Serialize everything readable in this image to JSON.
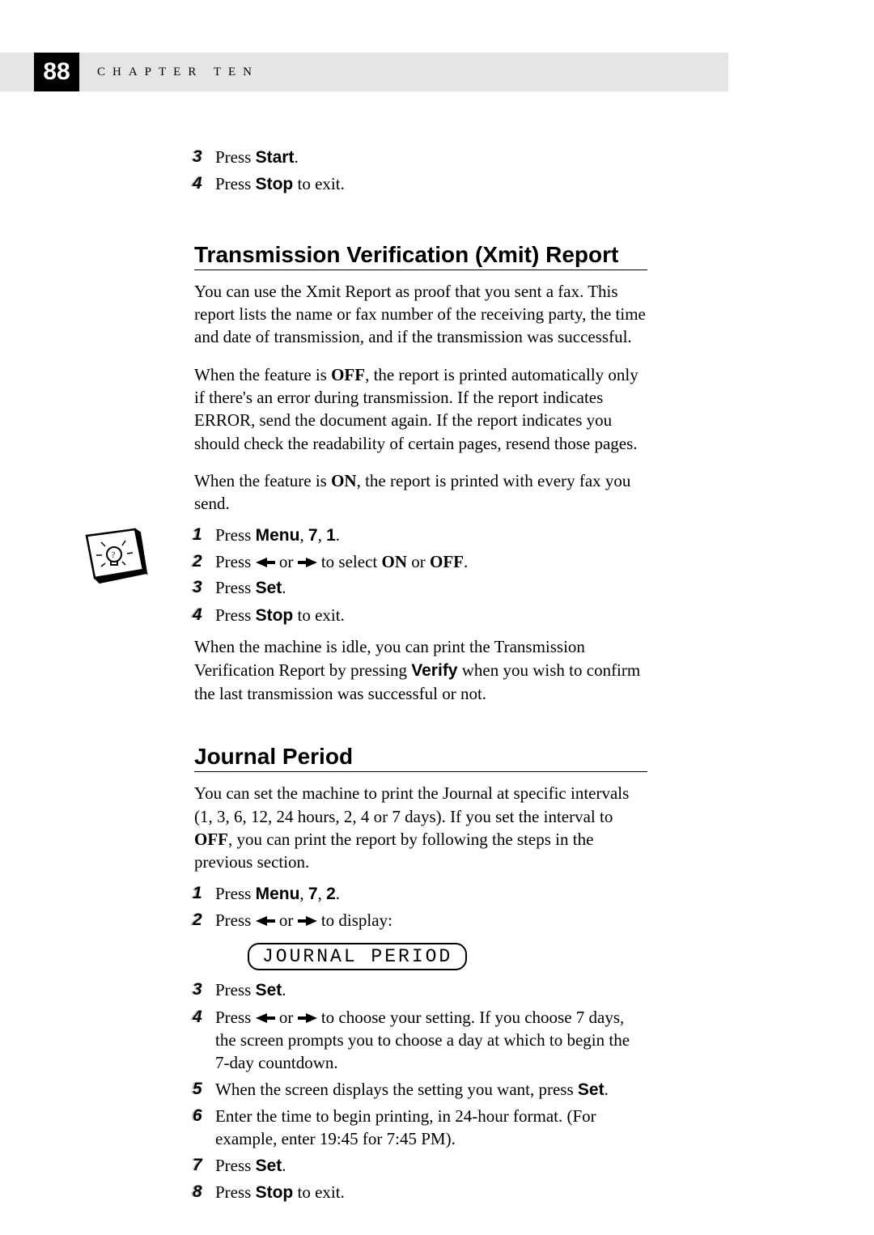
{
  "header": {
    "page_number": "88",
    "chapter_label": "CHAPTER TEN"
  },
  "intro_steps": [
    {
      "num": "3",
      "parts": [
        {
          "t": "plain",
          "v": "Press "
        },
        {
          "t": "sans",
          "v": "Start"
        },
        {
          "t": "plain",
          "v": "."
        }
      ]
    },
    {
      "num": "4",
      "parts": [
        {
          "t": "plain",
          "v": "Press "
        },
        {
          "t": "sans",
          "v": "Stop"
        },
        {
          "t": "plain",
          "v": " to exit."
        }
      ]
    }
  ],
  "section1": {
    "heading": "Transmission Verification (Xmit) Report",
    "para1": "You can use the Xmit Report as proof that you sent a fax. This report lists the name or fax number of the receiving party, the time and date of transmission, and if the transmission was successful.",
    "para2_pre": "When the feature is ",
    "para2_bold1": "OFF",
    "para2_post": ", the report is printed automatically only if there's an error during transmission. If the report indicates ERROR, send the document again. If the report indicates you should check the readability of certain pages, resend those pages.",
    "para3_pre": "When the feature is ",
    "para3_bold": "ON",
    "para3_post": ", the report is printed with every fax you send.",
    "steps": [
      {
        "num": "1",
        "parts": [
          {
            "t": "plain",
            "v": "Press "
          },
          {
            "t": "sans",
            "v": "Menu"
          },
          {
            "t": "plain",
            "v": ", "
          },
          {
            "t": "sans",
            "v": "7"
          },
          {
            "t": "plain",
            "v": ", "
          },
          {
            "t": "sans",
            "v": "1"
          },
          {
            "t": "plain",
            "v": "."
          }
        ]
      },
      {
        "num": "2",
        "parts": [
          {
            "t": "plain",
            "v": "Press "
          },
          {
            "t": "arrL",
            "v": ""
          },
          {
            "t": "plain",
            "v": " or "
          },
          {
            "t": "arrR",
            "v": ""
          },
          {
            "t": "plain",
            "v": " to select "
          },
          {
            "t": "serif-b",
            "v": "ON"
          },
          {
            "t": "plain",
            "v": " or "
          },
          {
            "t": "serif-b",
            "v": "OFF"
          },
          {
            "t": "plain",
            "v": "."
          }
        ]
      },
      {
        "num": "3",
        "parts": [
          {
            "t": "plain",
            "v": "Press "
          },
          {
            "t": "sans",
            "v": "Set"
          },
          {
            "t": "plain",
            "v": "."
          }
        ]
      },
      {
        "num": "4",
        "parts": [
          {
            "t": "plain",
            "v": "Press "
          },
          {
            "t": "sans",
            "v": "Stop"
          },
          {
            "t": "plain",
            "v": " to exit."
          }
        ]
      }
    ],
    "tip_pre": "When the machine is idle, you can print the Transmission Verification Report by pressing ",
    "tip_bold": "Verify",
    "tip_post": " when you wish to confirm the last transmission was successful or not."
  },
  "section2": {
    "heading": "Journal Period",
    "para_pre": "You can set the machine to print the Journal at specific intervals (1, 3, 6, 12, 24 hours, 2, 4 or 7 days). If you set the interval to ",
    "para_bold": "OFF",
    "para_post": ", you can print the report by following the steps in the previous section.",
    "steps_a": [
      {
        "num": "1",
        "parts": [
          {
            "t": "plain",
            "v": "Press "
          },
          {
            "t": "sans",
            "v": "Menu"
          },
          {
            "t": "plain",
            "v": ", "
          },
          {
            "t": "sans",
            "v": "7"
          },
          {
            "t": "plain",
            "v": ", "
          },
          {
            "t": "sans",
            "v": "2"
          },
          {
            "t": "plain",
            "v": "."
          }
        ]
      },
      {
        "num": "2",
        "parts": [
          {
            "t": "plain",
            "v": "Press "
          },
          {
            "t": "arrL",
            "v": ""
          },
          {
            "t": "plain",
            "v": " or "
          },
          {
            "t": "arrR",
            "v": ""
          },
          {
            "t": "plain",
            "v": " to display:"
          }
        ]
      }
    ],
    "lcd": "JOURNAL PERIOD",
    "steps_b": [
      {
        "num": "3",
        "parts": [
          {
            "t": "plain",
            "v": "Press "
          },
          {
            "t": "sans",
            "v": "Set"
          },
          {
            "t": "plain",
            "v": "."
          }
        ]
      },
      {
        "num": "4",
        "parts": [
          {
            "t": "plain",
            "v": "Press "
          },
          {
            "t": "arrL",
            "v": ""
          },
          {
            "t": "plain",
            "v": " or "
          },
          {
            "t": "arrR",
            "v": ""
          },
          {
            "t": "plain",
            "v": " to choose your setting. If you choose 7 days, the screen prompts you to choose a day at which to begin the 7-day countdown."
          }
        ]
      },
      {
        "num": "5",
        "parts": [
          {
            "t": "plain",
            "v": "When the screen displays the setting you want, press "
          },
          {
            "t": "sans",
            "v": "Set"
          },
          {
            "t": "plain",
            "v": "."
          }
        ]
      },
      {
        "num": "6",
        "parts": [
          {
            "t": "plain",
            "v": "Enter the time to begin printing, in 24-hour format. (For example, enter 19:45 for 7:45 PM)."
          }
        ]
      },
      {
        "num": "7",
        "parts": [
          {
            "t": "plain",
            "v": "Press "
          },
          {
            "t": "sans",
            "v": "Set"
          },
          {
            "t": "plain",
            "v": "."
          }
        ]
      },
      {
        "num": "8",
        "parts": [
          {
            "t": "plain",
            "v": "Press "
          },
          {
            "t": "sans",
            "v": "Stop"
          },
          {
            "t": "plain",
            "v": " to exit."
          }
        ]
      }
    ]
  },
  "colors": {
    "header_bg": "#e5e5e5",
    "pagebox_bg": "#000000",
    "pagebox_fg": "#ffffff",
    "text": "#000000"
  }
}
